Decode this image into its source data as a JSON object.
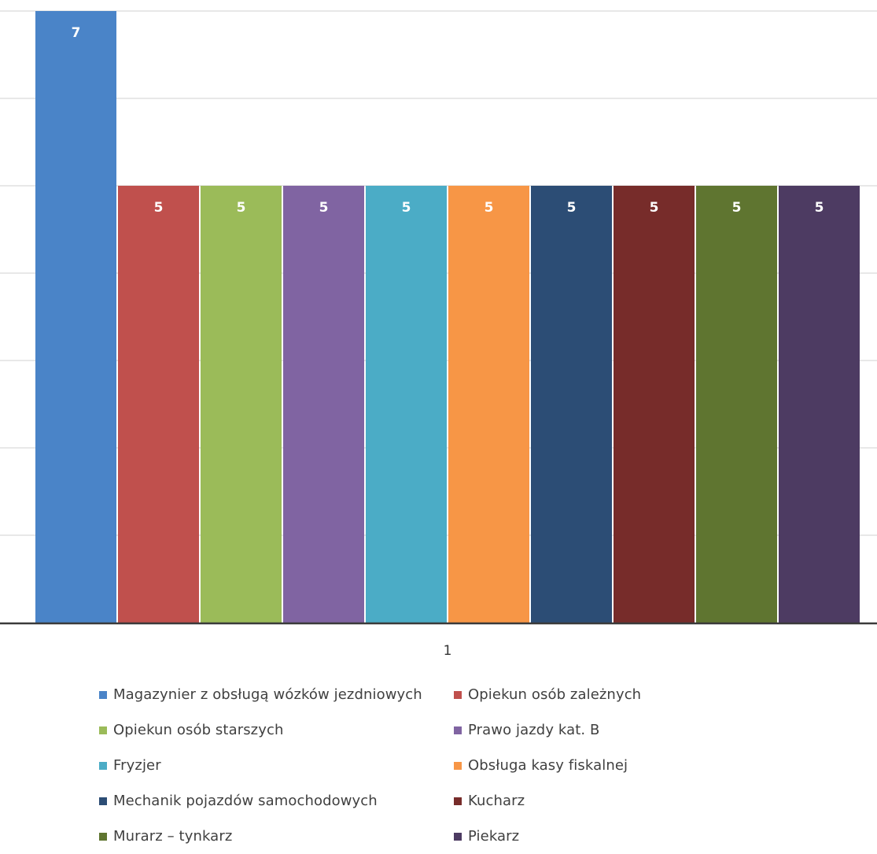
{
  "chart_data": {
    "type": "bar",
    "categories": [
      "1"
    ],
    "title": "",
    "xlabel": "",
    "ylabel": "",
    "ylim": [
      0,
      7
    ],
    "grid": true,
    "legend_position": "bottom",
    "data_labels": true,
    "series": [
      {
        "name": "Magazynier z obsługą wózków jezdniowych",
        "values": [
          7
        ],
        "color": "#4a84c8"
      },
      {
        "name": "Opiekun osób zależnych",
        "values": [
          5
        ],
        "color": "#c0504d"
      },
      {
        "name": "Opiekun osób starszych",
        "values": [
          5
        ],
        "color": "#9bbb59"
      },
      {
        "name": "Prawo jazdy kat. B",
        "values": [
          5
        ],
        "color": "#8064a2"
      },
      {
        "name": "Fryzjer",
        "values": [
          5
        ],
        "color": "#4bacc6"
      },
      {
        "name": "Obsługa kasy fiskalnej",
        "values": [
          5
        ],
        "color": "#f79646"
      },
      {
        "name": "Mechanik pojazdów samochodowych",
        "values": [
          5
        ],
        "color": "#2c4d75"
      },
      {
        "name": "Kucharz",
        "values": [
          5
        ],
        "color": "#772c2a"
      },
      {
        "name": "Murarz – tynkarz",
        "values": [
          5
        ],
        "color": "#5f7530"
      },
      {
        "name": "Piekarz",
        "values": [
          5
        ],
        "color": "#4d3b62"
      }
    ]
  }
}
